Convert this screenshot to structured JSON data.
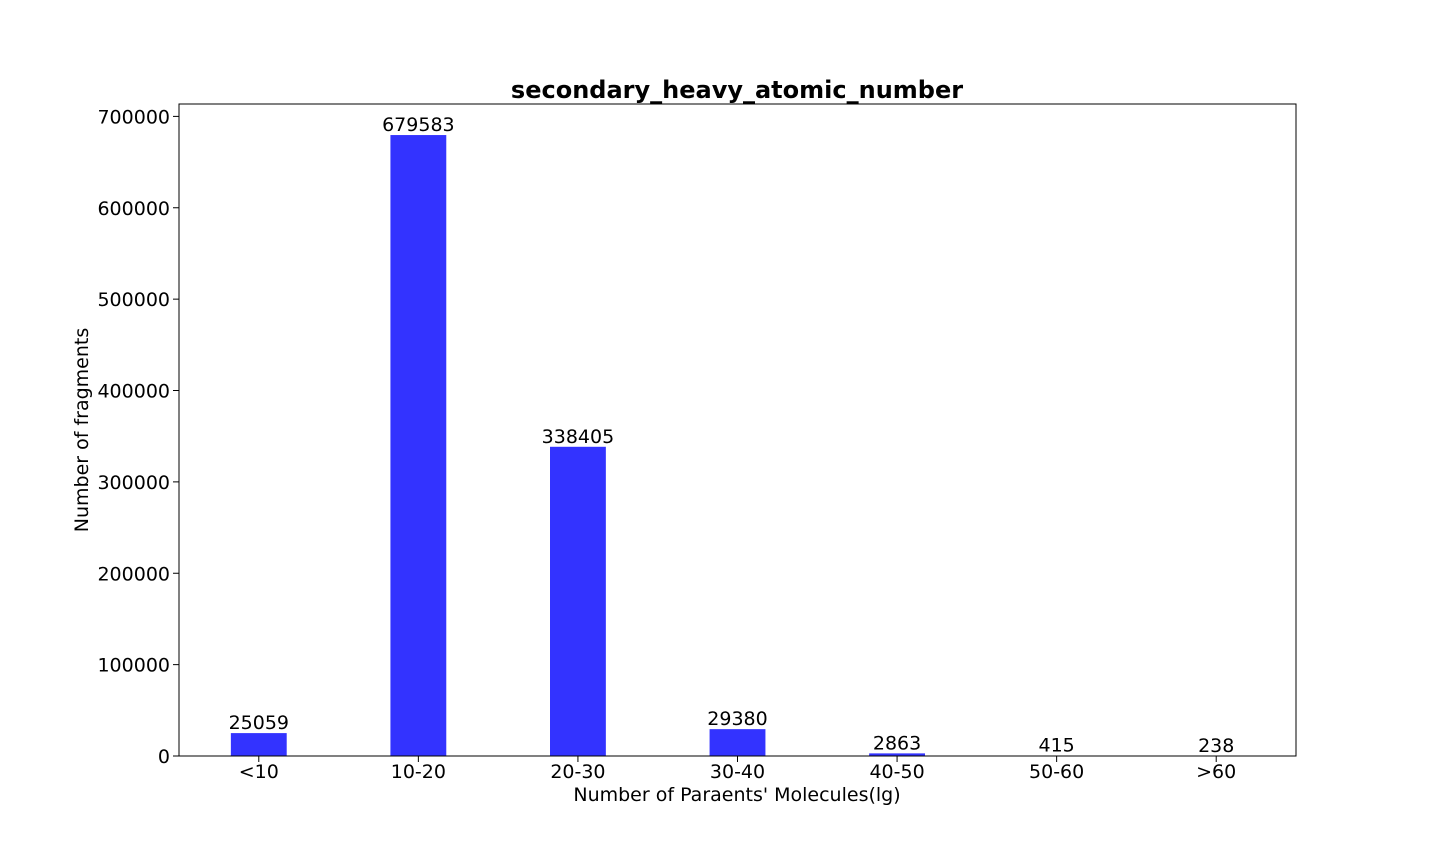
{
  "chart_data": {
    "type": "bar",
    "title": "secondary_heavy_atomic_number",
    "xlabel": "Number of Paraents' Molecules(lg)",
    "ylabel": "Number of fragments",
    "categories": [
      "<10",
      "10-20",
      "20-30",
      "30-40",
      "40-50",
      "50-60",
      ">60"
    ],
    "values": [
      25059,
      679583,
      338405,
      29380,
      2863,
      415,
      238
    ],
    "data_labels": [
      "25059",
      "679583",
      "338405",
      "29380",
      "2863",
      "415",
      "238"
    ],
    "ylim": [
      0,
      713562
    ],
    "yticks": [
      0,
      100000,
      200000,
      300000,
      400000,
      500000,
      600000,
      700000
    ],
    "ytick_labels": [
      "0",
      "100000",
      "200000",
      "300000",
      "400000",
      "500000",
      "600000",
      "700000"
    ],
    "grid": false,
    "legend": "none",
    "bar_color": "#3333ff"
  }
}
